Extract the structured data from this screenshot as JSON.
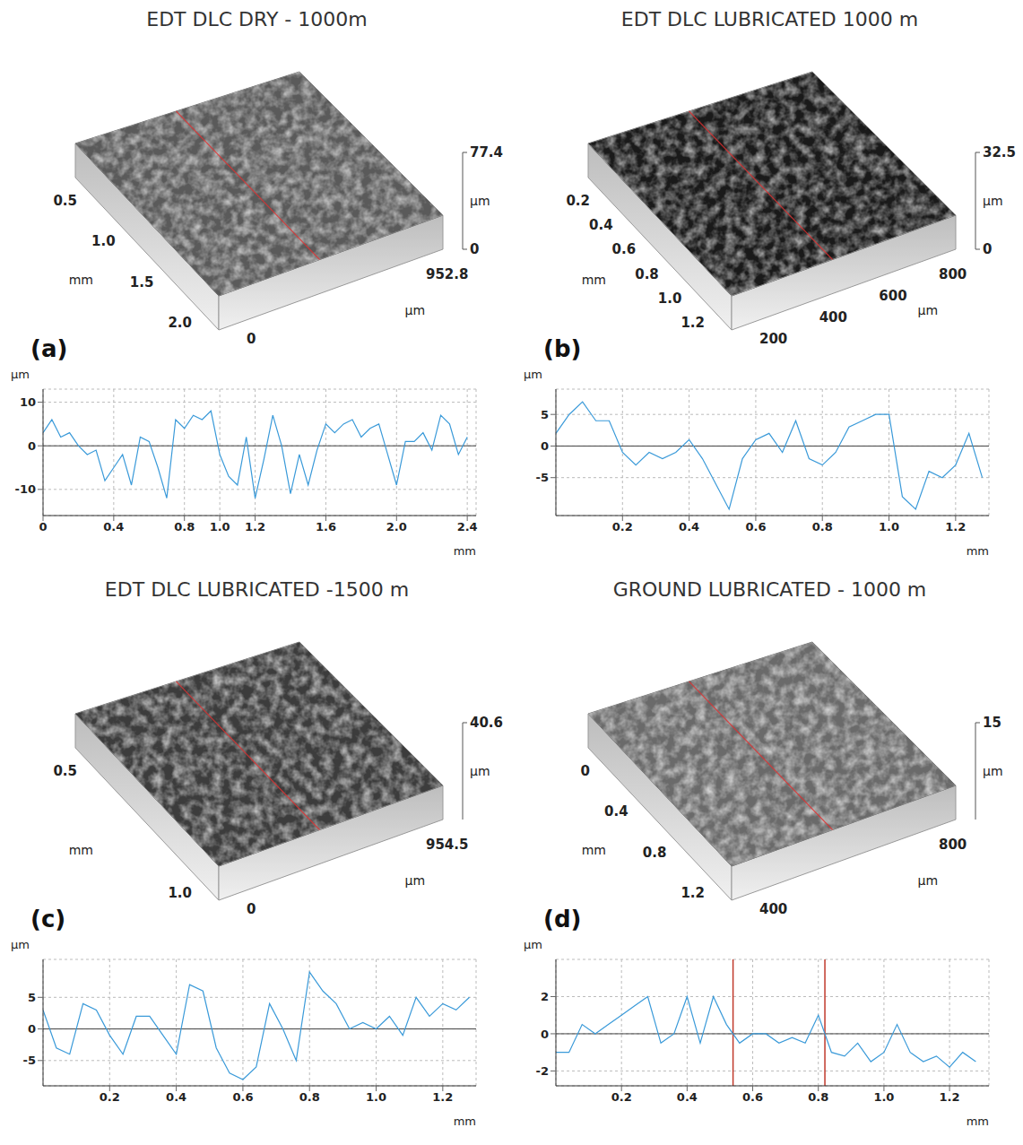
{
  "chart_data": [
    {
      "type": "line",
      "title": "EDT DLC DRY - 1000m",
      "panel": "(a)",
      "surface": {
        "color": "#5a5a5a",
        "x_ticks": [
          "0.5",
          "1.0",
          "1.5",
          "2.0"
        ],
        "x_unit": "mm",
        "y_ticks": [
          "0",
          "952.8"
        ],
        "y_unit": "µm",
        "z_ticks": [
          "0",
          "77.4"
        ],
        "z_unit": "µm"
      },
      "x_label": "mm",
      "y_label": "µm",
      "color": "#3a9ad9",
      "grid": true,
      "xlim": [
        0,
        2.45
      ],
      "xticks": [
        0,
        0.4,
        0.8,
        {
          "value": 1,
          "label": "1.0"
        },
        1.2,
        1.6,
        {
          "value": 2,
          "label": "2.0"
        },
        2.4
      ],
      "ylim": [
        -16,
        13
      ],
      "yticks": [
        -10,
        0,
        10
      ],
      "x": [
        0,
        0.05,
        0.1,
        0.15,
        0.2,
        0.25,
        0.3,
        0.35,
        0.4,
        0.45,
        0.5,
        0.55,
        0.6,
        0.65,
        0.7,
        0.75,
        0.8,
        0.85,
        0.9,
        0.95,
        1.0,
        1.05,
        1.1,
        1.15,
        1.2,
        1.25,
        1.3,
        1.35,
        1.4,
        1.45,
        1.5,
        1.55,
        1.6,
        1.65,
        1.7,
        1.75,
        1.8,
        1.85,
        1.9,
        1.95,
        2.0,
        2.05,
        2.1,
        2.15,
        2.2,
        2.25,
        2.3,
        2.35,
        2.4
      ],
      "values": [
        3,
        6,
        2,
        3,
        0,
        -2,
        -1,
        -8,
        -5,
        -2,
        -9,
        2,
        1,
        -5,
        -12,
        6,
        4,
        7,
        6,
        8,
        -2,
        -7,
        -9,
        2,
        -12,
        -3,
        7,
        0,
        -11,
        -2,
        -9,
        -1,
        5,
        3,
        5,
        6,
        2,
        4,
        5,
        -2,
        -9,
        1,
        1,
        3,
        -1,
        7,
        5,
        -2,
        2
      ]
    },
    {
      "type": "line",
      "title": "EDT DLC LUBRICATED 1000 m",
      "panel": "(b)",
      "surface": {
        "color": "#1a1a1a",
        "x_ticks": [
          "0.2",
          "0.4",
          "0.6",
          "0.8",
          "1.0",
          "1.2"
        ],
        "x_unit": "mm",
        "y_ticks": [
          "200",
          "400",
          "600",
          "800"
        ],
        "y_unit": "µm",
        "z_ticks": [
          "0",
          "32.5"
        ],
        "z_unit": "µm"
      },
      "x_label": "mm",
      "y_label": "µm",
      "color": "#3a9ad9",
      "grid": true,
      "xlim": [
        0,
        1.3
      ],
      "xticks": [
        0.2,
        0.4,
        0.6,
        0.8,
        {
          "value": 1,
          "label": "1.0"
        },
        1.2
      ],
      "ylim": [
        -11,
        9
      ],
      "yticks": [
        -5,
        0,
        5
      ],
      "x": [
        0,
        0.04,
        0.08,
        0.12,
        0.16,
        0.2,
        0.24,
        0.28,
        0.32,
        0.36,
        0.4,
        0.44,
        0.48,
        0.52,
        0.56,
        0.6,
        0.64,
        0.68,
        0.72,
        0.76,
        0.8,
        0.84,
        0.88,
        0.92,
        0.96,
        1.0,
        1.04,
        1.08,
        1.12,
        1.16,
        1.2,
        1.24,
        1.28
      ],
      "values": [
        2,
        5,
        7,
        4,
        4,
        -1,
        -3,
        -1,
        -2,
        -1,
        1,
        -2,
        -6,
        -10,
        -2,
        1,
        2,
        -1,
        4,
        -2,
        -3,
        -1,
        3,
        4,
        5,
        5,
        -8,
        -10,
        -4,
        -5,
        -3,
        2,
        -5
      ]
    },
    {
      "type": "line",
      "title": "EDT DLC LUBRICATED -1500 m",
      "panel": "(c)",
      "surface": {
        "color": "#3c3c3c",
        "x_ticks": [
          "0.5",
          "1.0"
        ],
        "x_unit": "mm",
        "y_ticks": [
          "0",
          "954.5"
        ],
        "y_unit": "µm",
        "z_ticks": [
          "40.6"
        ],
        "z_unit": "µm"
      },
      "x_label": "mm",
      "y_label": "µm",
      "color": "#3a9ad9",
      "grid": true,
      "xlim": [
        0,
        1.3
      ],
      "xticks": [
        0.2,
        0.4,
        0.6,
        0.8,
        {
          "value": 1,
          "label": "1.0"
        },
        1.2
      ],
      "ylim": [
        -9,
        11
      ],
      "yticks": [
        -5,
        0,
        5
      ],
      "x": [
        0,
        0.04,
        0.08,
        0.12,
        0.16,
        0.2,
        0.24,
        0.28,
        0.32,
        0.36,
        0.4,
        0.44,
        0.48,
        0.52,
        0.56,
        0.6,
        0.64,
        0.68,
        0.72,
        0.76,
        0.8,
        0.84,
        0.88,
        0.92,
        0.96,
        1.0,
        1.04,
        1.08,
        1.12,
        1.16,
        1.2,
        1.24,
        1.28
      ],
      "values": [
        3,
        -3,
        -4,
        4,
        3,
        -1,
        -4,
        2,
        2,
        -1,
        -4,
        7,
        6,
        -3,
        -7,
        -8,
        -6,
        4,
        0,
        -5,
        9,
        6,
        4,
        0,
        1,
        0,
        2,
        -1,
        5,
        2,
        4,
        3,
        5
      ]
    },
    {
      "type": "line",
      "title": "GROUND LUBRICATED - 1000 m",
      "panel": "(d)",
      "surface": {
        "color": "#6a6a6a",
        "x_ticks": [
          "0",
          "0.4",
          "0.8",
          "1.2"
        ],
        "x_unit": "mm",
        "y_ticks": [
          "400",
          "800"
        ],
        "y_unit": "µm",
        "z_ticks": [
          "15"
        ],
        "z_unit": "µm"
      },
      "x_label": "mm",
      "y_label": "µm",
      "color": "#3a9ad9",
      "grid": true,
      "cursors": [
        0.54,
        0.82
      ],
      "cursor_color": "#c0392b",
      "xlim": [
        0,
        1.32
      ],
      "xticks": [
        0.2,
        0.4,
        0.6,
        0.8,
        {
          "value": 1,
          "label": "1.0"
        },
        1.2
      ],
      "ylim": [
        -2.8,
        4
      ],
      "yticks": [
        -2,
        0,
        2
      ],
      "x": [
        0,
        0.04,
        0.08,
        0.12,
        0.16,
        0.2,
        0.24,
        0.28,
        0.32,
        0.36,
        0.4,
        0.44,
        0.48,
        0.52,
        0.56,
        0.6,
        0.64,
        0.68,
        0.72,
        0.76,
        0.8,
        0.84,
        0.88,
        0.92,
        0.96,
        1.0,
        1.04,
        1.08,
        1.12,
        1.16,
        1.2,
        1.24,
        1.28
      ],
      "values": [
        -1,
        -1,
        0.5,
        0,
        0.5,
        1,
        1.5,
        2,
        -0.5,
        0,
        2,
        -0.5,
        2,
        0.5,
        -0.5,
        0,
        0,
        -0.5,
        -0.2,
        -0.5,
        1,
        -1,
        -1.2,
        -0.5,
        -1.5,
        -1,
        0.5,
        -1,
        -1.5,
        -1.2,
        -1.8,
        -1,
        -1.5
      ]
    }
  ]
}
